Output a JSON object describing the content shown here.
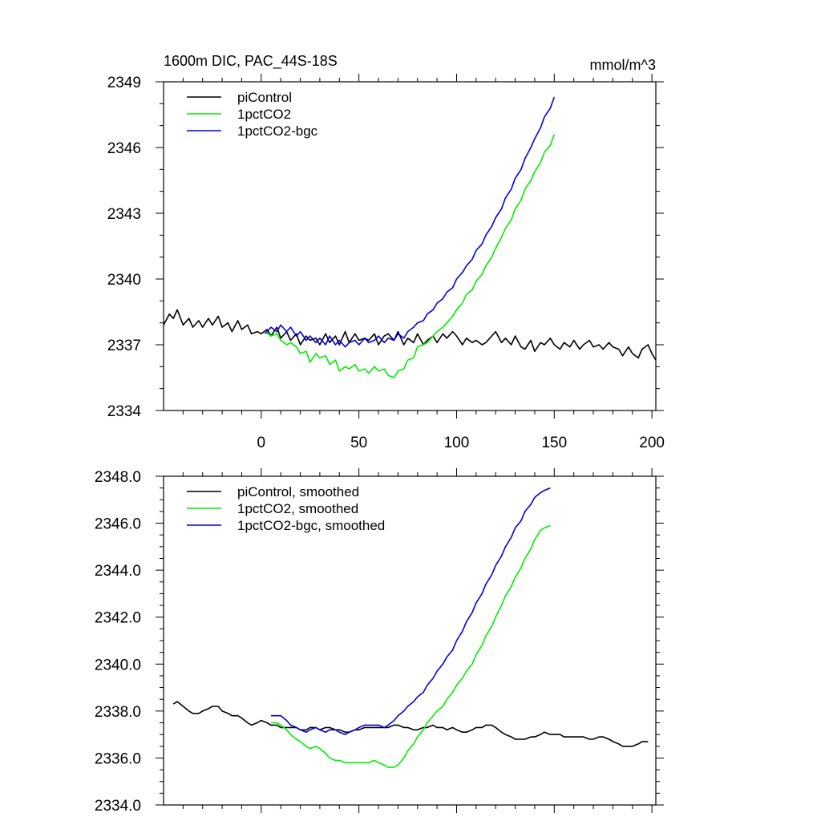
{
  "colors": {
    "piControl": "#000000",
    "1pctCO2": "#00ee00",
    "1pctCO2-bgc": "#0000dd"
  },
  "chart_data": [
    {
      "type": "line",
      "title": "1600m DIC, PAC_44S-18S",
      "units": "mmol/m^3",
      "xlabel": "",
      "ylabel": "",
      "xlim": [
        -50,
        202
      ],
      "ylim": [
        2334,
        2349
      ],
      "x_ticks": [
        0,
        50,
        100,
        150,
        200
      ],
      "x_tick_labels": [
        "0",
        "50",
        "100",
        "150",
        "200"
      ],
      "y_ticks": [
        2334,
        2337,
        2340,
        2343,
        2346,
        2349
      ],
      "y_tick_labels": [
        "2334",
        "2337",
        "2340",
        "2343",
        "2346",
        "2349"
      ],
      "legend": [
        "piControl",
        "1pctCO2",
        "1pctCO2-bgc"
      ],
      "legend_position": "top-left",
      "series": [
        {
          "name": "piControl",
          "key": "piControl",
          "x": [
            -50,
            -47,
            -45,
            -43,
            -40,
            -37,
            -35,
            -32,
            -30,
            -27,
            -25,
            -22,
            -20,
            -17,
            -15,
            -12,
            -10,
            -7,
            -5,
            -2,
            0,
            3,
            5,
            8,
            10,
            13,
            15,
            18,
            20,
            23,
            25,
            28,
            30,
            33,
            35,
            38,
            40,
            43,
            45,
            48,
            50,
            53,
            55,
            58,
            60,
            63,
            65,
            68,
            70,
            73,
            75,
            78,
            80,
            83,
            85,
            88,
            90,
            93,
            95,
            98,
            100,
            103,
            105,
            108,
            110,
            113,
            115,
            118,
            120,
            123,
            125,
            128,
            130,
            133,
            135,
            138,
            140,
            143,
            145,
            148,
            150,
            153,
            155,
            158,
            160,
            163,
            165,
            168,
            170,
            173,
            175,
            178,
            180,
            183,
            185,
            188,
            190,
            193,
            195,
            198,
            200,
            202
          ],
          "y": [
            2337.9,
            2338.4,
            2338.2,
            2338.6,
            2337.9,
            2338.2,
            2337.8,
            2338.1,
            2337.8,
            2338.2,
            2337.9,
            2338.3,
            2337.8,
            2338.0,
            2337.6,
            2338.1,
            2337.7,
            2337.9,
            2337.5,
            2337.6,
            2337.5,
            2337.7,
            2337.4,
            2337.8,
            2337.3,
            2337.6,
            2337.2,
            2337.5,
            2337.0,
            2337.4,
            2337.2,
            2337.3,
            2337.0,
            2337.5,
            2337.1,
            2337.4,
            2337.0,
            2337.6,
            2337.1,
            2337.5,
            2337.2,
            2337.3,
            2337.2,
            2337.5,
            2337.0,
            2337.4,
            2337.5,
            2337.2,
            2337.6,
            2337.0,
            2337.3,
            2337.1,
            2337.5,
            2337.0,
            2337.2,
            2337.4,
            2337.1,
            2337.5,
            2337.3,
            2337.6,
            2337.4,
            2337.0,
            2337.3,
            2337.1,
            2337.2,
            2337.0,
            2337.1,
            2337.4,
            2337.6,
            2337.1,
            2337.3,
            2337.0,
            2337.4,
            2336.9,
            2336.8,
            2337.2,
            2336.7,
            2337.1,
            2337.0,
            2337.3,
            2337.0,
            2336.8,
            2337.1,
            2336.9,
            2337.2,
            2336.8,
            2337.0,
            2337.2,
            2336.9,
            2337.0,
            2336.8,
            2337.1,
            2336.9,
            2336.8,
            2336.5,
            2336.9,
            2336.6,
            2336.4,
            2336.8,
            2337.0,
            2336.6,
            2336.3
          ]
        },
        {
          "name": "1pctCO2",
          "key": "1pctCO2",
          "x": [
            2,
            5,
            8,
            10,
            13,
            15,
            18,
            20,
            23,
            25,
            28,
            30,
            33,
            35,
            38,
            40,
            43,
            45,
            48,
            50,
            53,
            55,
            58,
            60,
            63,
            65,
            68,
            70,
            73,
            75,
            78,
            80,
            83,
            85,
            88,
            90,
            93,
            95,
            98,
            100,
            103,
            105,
            108,
            110,
            113,
            115,
            118,
            120,
            123,
            125,
            128,
            130,
            133,
            135,
            138,
            140,
            143,
            145,
            148,
            150
          ],
          "y": [
            2337.6,
            2337.4,
            2337.5,
            2337.2,
            2337.0,
            2337.1,
            2336.9,
            2336.6,
            2336.7,
            2336.2,
            2336.6,
            2336.4,
            2336.5,
            2336.1,
            2336.3,
            2335.8,
            2336.0,
            2335.9,
            2336.1,
            2335.8,
            2335.9,
            2335.7,
            2336.0,
            2335.8,
            2335.9,
            2335.6,
            2335.5,
            2335.8,
            2335.9,
            2336.3,
            2336.4,
            2336.9,
            2337.0,
            2337.1,
            2337.4,
            2337.6,
            2337.8,
            2338.0,
            2338.3,
            2338.6,
            2338.9,
            2339.3,
            2339.5,
            2339.9,
            2340.2,
            2340.6,
            2341.0,
            2341.4,
            2341.9,
            2342.3,
            2342.7,
            2343.2,
            2343.6,
            2344.1,
            2344.5,
            2344.9,
            2345.3,
            2345.8,
            2346.1,
            2346.6
          ]
        },
        {
          "name": "1pctCO2-bgc",
          "key": "1pctCO2-bgc",
          "x": [
            2,
            5,
            8,
            10,
            13,
            15,
            18,
            20,
            23,
            25,
            28,
            30,
            33,
            35,
            38,
            40,
            43,
            45,
            48,
            50,
            53,
            55,
            58,
            60,
            63,
            65,
            68,
            70,
            73,
            75,
            78,
            80,
            83,
            85,
            88,
            90,
            93,
            95,
            98,
            100,
            103,
            105,
            108,
            110,
            113,
            115,
            118,
            120,
            123,
            125,
            128,
            130,
            133,
            135,
            138,
            140,
            143,
            145,
            148,
            150
          ],
          "y": [
            2337.5,
            2337.8,
            2337.6,
            2337.9,
            2337.6,
            2337.8,
            2337.4,
            2337.6,
            2337.2,
            2337.4,
            2337.1,
            2337.3,
            2337.0,
            2337.4,
            2337.0,
            2337.2,
            2336.9,
            2337.1,
            2337.2,
            2337.0,
            2337.3,
            2337.1,
            2337.2,
            2337.4,
            2337.1,
            2337.3,
            2337.2,
            2337.5,
            2337.3,
            2337.6,
            2337.8,
            2338.0,
            2338.1,
            2338.4,
            2338.6,
            2338.9,
            2339.1,
            2339.4,
            2339.6,
            2340.0,
            2340.3,
            2340.6,
            2340.9,
            2341.3,
            2341.6,
            2342.0,
            2342.4,
            2342.8,
            2343.2,
            2343.7,
            2344.1,
            2344.6,
            2345.0,
            2345.5,
            2346.0,
            2346.4,
            2346.9,
            2347.4,
            2347.8,
            2348.3
          ]
        }
      ]
    },
    {
      "type": "line",
      "title": "",
      "xlabel": "",
      "ylabel": "",
      "xlim": [
        -50,
        202
      ],
      "ylim": [
        2334,
        2348
      ],
      "x_ticks": [
        0,
        50,
        100,
        150,
        200
      ],
      "x_tick_labels": [],
      "y_ticks": [
        2334,
        2336,
        2338,
        2340,
        2342,
        2344,
        2346,
        2348
      ],
      "y_tick_labels": [
        "2334.0",
        "2336.0",
        "2338.0",
        "2340.0",
        "2342.0",
        "2344.0",
        "2346.0",
        "2348.0"
      ],
      "legend": [
        "piControl, smoothed",
        "1pctCO2, smoothed",
        "1pctCO2-bgc, smoothed"
      ],
      "legend_position": "top-left",
      "series": [
        {
          "name": "piControl, smoothed",
          "key": "piControl",
          "x": [
            -45,
            -43,
            -40,
            -37,
            -35,
            -32,
            -30,
            -27,
            -25,
            -22,
            -20,
            -17,
            -15,
            -12,
            -10,
            -7,
            -5,
            -2,
            0,
            3,
            5,
            8,
            10,
            13,
            15,
            18,
            20,
            23,
            25,
            28,
            30,
            33,
            35,
            38,
            40,
            43,
            45,
            48,
            50,
            53,
            55,
            58,
            60,
            63,
            65,
            68,
            70,
            73,
            75,
            78,
            80,
            83,
            85,
            88,
            90,
            93,
            95,
            98,
            100,
            103,
            105,
            108,
            110,
            113,
            115,
            118,
            120,
            123,
            125,
            128,
            130,
            133,
            135,
            138,
            140,
            143,
            145,
            148,
            150,
            153,
            155,
            158,
            160,
            163,
            165,
            168,
            170,
            173,
            175,
            178,
            180,
            183,
            185,
            188,
            190,
            193,
            195,
            198
          ],
          "y": [
            2338.3,
            2338.4,
            2338.2,
            2338.0,
            2337.9,
            2337.9,
            2338.0,
            2338.1,
            2338.2,
            2338.2,
            2338.0,
            2337.9,
            2337.8,
            2337.8,
            2337.7,
            2337.5,
            2337.4,
            2337.5,
            2337.6,
            2337.5,
            2337.4,
            2337.4,
            2337.3,
            2337.3,
            2337.3,
            2337.3,
            2337.2,
            2337.2,
            2337.3,
            2337.3,
            2337.2,
            2337.3,
            2337.3,
            2337.2,
            2337.2,
            2337.1,
            2337.1,
            2337.2,
            2337.2,
            2337.3,
            2337.3,
            2337.3,
            2337.3,
            2337.3,
            2337.3,
            2337.4,
            2337.4,
            2337.3,
            2337.3,
            2337.2,
            2337.2,
            2337.3,
            2337.3,
            2337.4,
            2337.3,
            2337.3,
            2337.2,
            2337.3,
            2337.2,
            2337.1,
            2337.1,
            2337.2,
            2337.3,
            2337.3,
            2337.4,
            2337.4,
            2337.3,
            2337.1,
            2337.0,
            2336.9,
            2336.8,
            2336.8,
            2336.8,
            2336.9,
            2336.9,
            2337.0,
            2337.1,
            2337.0,
            2337.0,
            2337.0,
            2336.9,
            2336.9,
            2336.9,
            2336.9,
            2336.9,
            2336.8,
            2336.8,
            2336.9,
            2336.9,
            2336.8,
            2336.7,
            2336.6,
            2336.5,
            2336.5,
            2336.5,
            2336.6,
            2336.7,
            2336.7
          ]
        },
        {
          "name": "1pctCO2, smoothed",
          "key": "1pctCO2",
          "x": [
            5,
            8,
            10,
            13,
            15,
            18,
            20,
            23,
            25,
            28,
            30,
            33,
            35,
            38,
            40,
            43,
            45,
            48,
            50,
            53,
            55,
            58,
            60,
            63,
            65,
            68,
            70,
            73,
            75,
            78,
            80,
            83,
            85,
            88,
            90,
            93,
            95,
            98,
            100,
            103,
            105,
            108,
            110,
            113,
            115,
            118,
            120,
            123,
            125,
            128,
            130,
            133,
            135,
            138,
            140,
            143,
            145,
            148
          ],
          "y": [
            2337.5,
            2337.5,
            2337.4,
            2337.2,
            2337.0,
            2336.8,
            2336.7,
            2336.5,
            2336.4,
            2336.5,
            2336.4,
            2336.2,
            2336.0,
            2335.9,
            2335.9,
            2335.8,
            2335.8,
            2335.8,
            2335.8,
            2335.8,
            2335.8,
            2335.9,
            2335.8,
            2335.7,
            2335.6,
            2335.6,
            2335.7,
            2336.0,
            2336.3,
            2336.6,
            2336.9,
            2337.2,
            2337.5,
            2337.8,
            2338.0,
            2338.2,
            2338.5,
            2338.8,
            2339.1,
            2339.4,
            2339.7,
            2340.0,
            2340.4,
            2340.8,
            2341.2,
            2341.6,
            2342.0,
            2342.5,
            2342.9,
            2343.3,
            2343.7,
            2344.1,
            2344.5,
            2344.9,
            2345.3,
            2345.7,
            2345.8,
            2345.9
          ]
        },
        {
          "name": "1pctCO2-bgc, smoothed",
          "key": "1pctCO2-bgc",
          "x": [
            5,
            8,
            10,
            13,
            15,
            18,
            20,
            23,
            25,
            28,
            30,
            33,
            35,
            38,
            40,
            43,
            45,
            48,
            50,
            53,
            55,
            58,
            60,
            63,
            65,
            68,
            70,
            73,
            75,
            78,
            80,
            83,
            85,
            88,
            90,
            93,
            95,
            98,
            100,
            103,
            105,
            108,
            110,
            113,
            115,
            118,
            120,
            123,
            125,
            128,
            130,
            133,
            135,
            138,
            140,
            143,
            145,
            148
          ],
          "y": [
            2337.8,
            2337.8,
            2337.8,
            2337.6,
            2337.4,
            2337.3,
            2337.2,
            2337.1,
            2337.2,
            2337.3,
            2337.2,
            2337.1,
            2337.2,
            2337.2,
            2337.1,
            2337.0,
            2337.1,
            2337.2,
            2337.3,
            2337.4,
            2337.4,
            2337.4,
            2337.4,
            2337.3,
            2337.4,
            2337.6,
            2337.8,
            2338.0,
            2338.2,
            2338.4,
            2338.6,
            2338.8,
            2339.1,
            2339.4,
            2339.7,
            2340.0,
            2340.3,
            2340.6,
            2341.0,
            2341.4,
            2341.8,
            2342.2,
            2342.6,
            2343.0,
            2343.4,
            2343.8,
            2344.2,
            2344.6,
            2345.0,
            2345.4,
            2345.8,
            2346.1,
            2346.5,
            2346.8,
            2347.1,
            2347.3,
            2347.4,
            2347.5
          ]
        }
      ]
    }
  ]
}
